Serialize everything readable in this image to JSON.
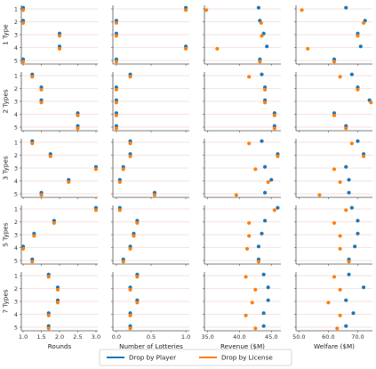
{
  "chart_data": {
    "type": "scatter",
    "layout": "small-multiples grid (rows = number of license types, columns = metric)",
    "x_axes": [
      {
        "label": "Rounds",
        "ticks": [
          "1.0",
          "1.5",
          "2.0",
          "2.5",
          "3.0"
        ],
        "tick_values": [
          1.0,
          1.5,
          2.0,
          2.5,
          3.0
        ],
        "xlim": [
          0.95,
          3.05
        ]
      },
      {
        "label": "Number of Lotteries",
        "ticks": [
          "0.0",
          "0.5",
          "1.0"
        ],
        "tick_values": [
          0.0,
          0.5,
          1.0
        ],
        "xlim": [
          -0.05,
          1.05
        ]
      },
      {
        "label": "Revenue ($M)",
        "ticks": [
          "35.0",
          "40.0",
          "45.0"
        ],
        "tick_values": [
          35.0,
          40.0,
          45.0
        ],
        "xlim": [
          34.5,
          46.5
        ]
      },
      {
        "label": "Welfare ($M)",
        "ticks": [
          "50.0",
          "60.0",
          "70.0"
        ],
        "tick_values": [
          50.0,
          60.0,
          70.0
        ],
        "xlim": [
          49,
          75
        ]
      }
    ],
    "rows": [
      {
        "label": "1 Type",
        "yticks": [
          "1",
          "2",
          "3",
          "4",
          "5"
        ]
      },
      {
        "label": "2 Types",
        "yticks": [
          "1",
          "2",
          "3",
          "4",
          "5"
        ]
      },
      {
        "label": "3 Types",
        "yticks": [
          "1",
          "2",
          "3",
          "4",
          "5"
        ]
      },
      {
        "label": "5 Types",
        "yticks": [
          "1",
          "2",
          "3",
          "4",
          "5"
        ]
      },
      {
        "label": "7 Types",
        "yticks": [
          "1",
          "2",
          "3",
          "4",
          "5"
        ]
      }
    ],
    "series": [
      {
        "name": "Drop by Player",
        "color": "#1f77b4"
      },
      {
        "name": "Drop by License",
        "color": "#ff7f0e"
      }
    ],
    "panels": [
      [
        {
          "player": [
            1.0,
            1.0,
            2.0,
            2.0,
            1.0
          ],
          "license": [
            1.0,
            1.0,
            2.0,
            2.0,
            1.0
          ]
        },
        {
          "player": [
            1.0,
            0.0,
            0.0,
            1.0,
            0.0
          ],
          "license": [
            1.0,
            0.0,
            0.0,
            1.0,
            0.0
          ]
        },
        {
          "player": [
            43.0,
            43.2,
            43.8,
            44.3,
            43.2
          ],
          "license": [
            34.8,
            43.4,
            43.5,
            36.5,
            43.2
          ]
        },
        {
          "player": [
            66.0,
            72.5,
            70.0,
            71.0,
            62.0
          ],
          "license": [
            51.0,
            72.0,
            70.0,
            53.0,
            62.0
          ]
        }
      ],
      [
        {
          "player": [
            1.25,
            1.5,
            1.5,
            2.5,
            2.5
          ],
          "license": [
            1.25,
            1.5,
            1.5,
            2.5,
            2.5
          ]
        },
        {
          "player": [
            0.2,
            0.0,
            0.0,
            0.0,
            0.0
          ],
          "license": [
            0.2,
            0.0,
            0.0,
            0.0,
            0.0
          ]
        },
        {
          "player": [
            43.5,
            44.0,
            44.0,
            45.5,
            45.5
          ],
          "license": [
            41.5,
            44.0,
            44.0,
            45.5,
            45.5
          ]
        },
        {
          "player": [
            68.0,
            70.0,
            74.0,
            62.0,
            66.0
          ],
          "license": [
            64.0,
            70.0,
            74.5,
            62.0,
            66.0
          ]
        }
      ],
      [
        {
          "player": [
            1.25,
            1.75,
            3.0,
            2.25,
            1.5
          ],
          "license": [
            1.25,
            1.75,
            3.0,
            2.25,
            1.5
          ]
        },
        {
          "player": [
            0.2,
            0.2,
            0.1,
            0.05,
            0.55
          ],
          "license": [
            0.2,
            0.2,
            0.1,
            0.05,
            0.55
          ]
        },
        {
          "player": [
            43.5,
            46.0,
            44.0,
            45.0,
            44.0
          ],
          "license": [
            41.5,
            46.0,
            42.5,
            44.5,
            39.5
          ]
        },
        {
          "player": [
            70.0,
            72.0,
            66.0,
            67.0,
            67.0
          ],
          "license": [
            68.0,
            72.0,
            62.0,
            64.0,
            57.0
          ]
        }
      ],
      [
        {
          "player": [
            3.0,
            1.85,
            1.3,
            1.0,
            1.25
          ],
          "license": [
            3.0,
            1.85,
            1.3,
            1.0,
            1.25
          ]
        },
        {
          "player": [
            0.05,
            0.3,
            0.25,
            0.2,
            0.1
          ],
          "license": [
            0.05,
            0.3,
            0.25,
            0.2,
            0.1
          ]
        },
        {
          "player": [
            46.0,
            44.0,
            43.5,
            43.0,
            43.0
          ],
          "license": [
            45.5,
            41.5,
            41.5,
            41.2,
            43.0
          ]
        },
        {
          "player": [
            68.0,
            70.0,
            70.0,
            69.0,
            67.0
          ],
          "license": [
            66.0,
            62.0,
            64.0,
            64.0,
            67.0
          ]
        }
      ],
      [
        {
          "player": [
            1.7,
            1.95,
            1.95,
            1.7,
            1.7
          ],
          "license": [
            1.7,
            1.95,
            1.95,
            1.7,
            1.7
          ]
        },
        {
          "player": [
            0.3,
            0.2,
            0.3,
            0.2,
            0.2
          ],
          "license": [
            0.3,
            0.2,
            0.3,
            0.2,
            0.2
          ]
        },
        {
          "player": [
            43.8,
            44.5,
            44.5,
            43.8,
            43.8
          ],
          "license": [
            41.0,
            42.5,
            42.0,
            41.0,
            42.5
          ]
        },
        {
          "player": [
            67.0,
            72.0,
            66.0,
            68.5,
            66.0
          ],
          "license": [
            62.0,
            64.0,
            60.0,
            64.0,
            63.0
          ]
        }
      ]
    ],
    "grid": "horizontal",
    "legend_placement": "bottom-center"
  }
}
